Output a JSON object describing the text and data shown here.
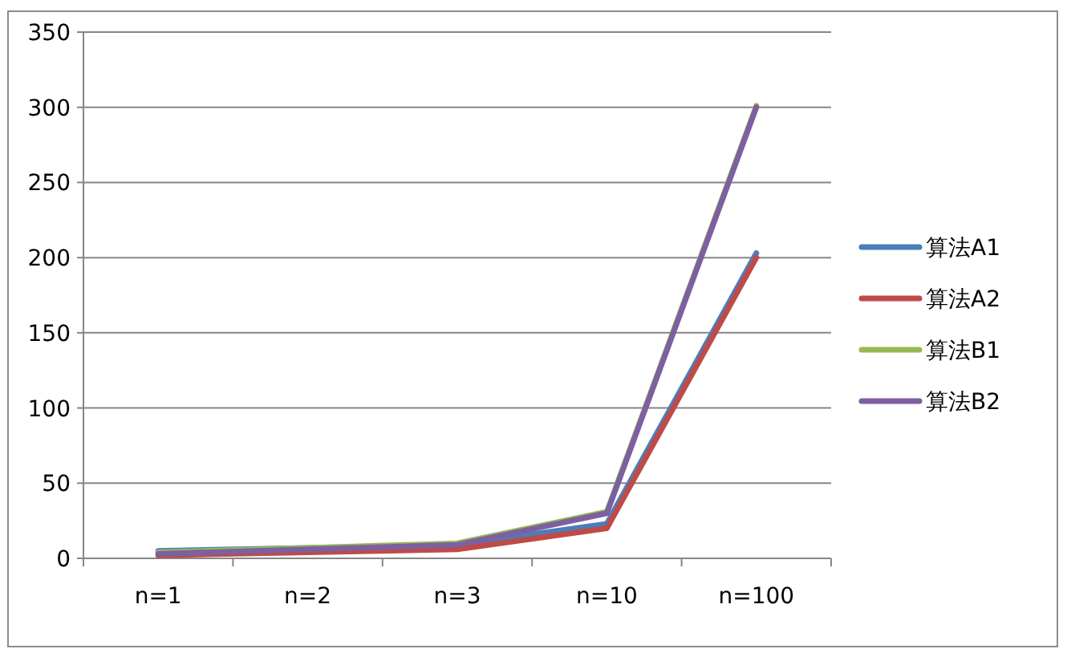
{
  "chart_data": {
    "type": "line",
    "categories": [
      "n=1",
      "n=2",
      "n=3",
      "n=10",
      "n=100"
    ],
    "series": [
      {
        "name": "算法A1",
        "color": "#4a7ebb",
        "values": [
          5,
          7,
          9,
          23,
          203
        ]
      },
      {
        "name": "算法A2",
        "color": "#be4b48",
        "values": [
          2,
          4,
          6,
          20,
          200
        ]
      },
      {
        "name": "算法B1",
        "color": "#98b954",
        "values": [
          4,
          7,
          10,
          31,
          301
        ]
      },
      {
        "name": "算法B2",
        "color": "#7d60a0",
        "values": [
          3,
          6,
          9,
          30,
          300
        ]
      }
    ],
    "ylim": [
      0,
      350
    ],
    "yticks": [
      0,
      50,
      100,
      150,
      200,
      250,
      300,
      350
    ],
    "grid": "y",
    "legend": "right",
    "marker": "none",
    "line_style": "solid"
  }
}
